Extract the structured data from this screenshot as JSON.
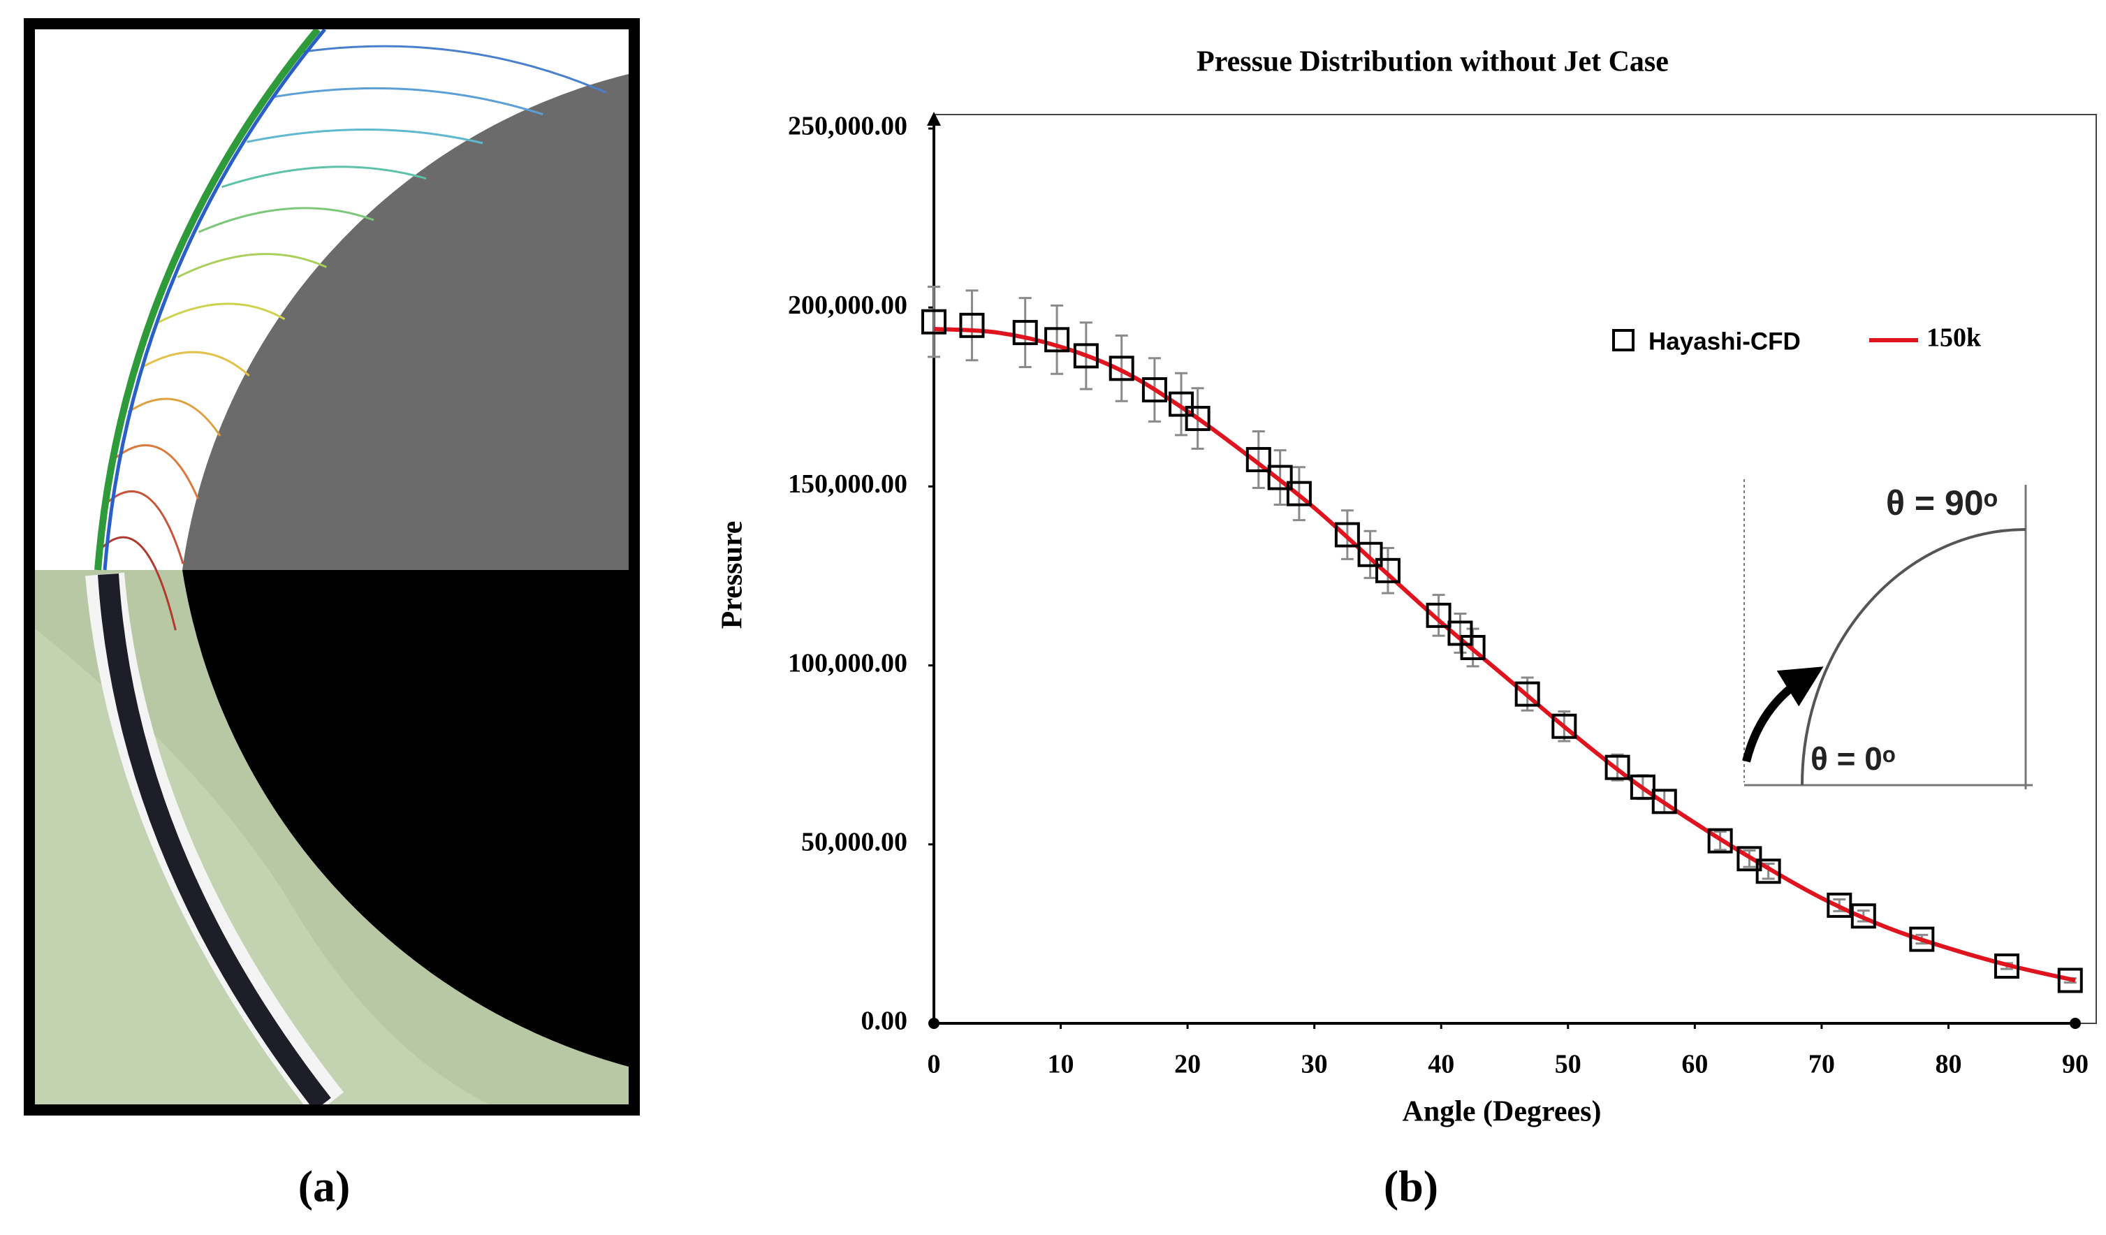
{
  "chart_data": {
    "type": "scatter",
    "title": "Pressue Distribution without Jet Case",
    "xlabel": "Angle (Degrees)",
    "ylabel": "Pressure",
    "xlim": [
      0,
      90
    ],
    "ylim": [
      0,
      250000
    ],
    "xticks": [
      0,
      10,
      20,
      30,
      40,
      50,
      60,
      70,
      80,
      90
    ],
    "yticks": [
      {
        "value": 0,
        "label": "0.00"
      },
      {
        "value": 50000,
        "label": "50,000.00"
      },
      {
        "value": 100000,
        "label": "100,000.00"
      },
      {
        "value": 150000,
        "label": "150,000.00"
      },
      {
        "value": 200000,
        "label": "200,000.00"
      },
      {
        "value": 250000,
        "label": "250,000.00"
      }
    ],
    "legend": "upper right",
    "series": [
      {
        "name": "Hayashi-CFD",
        "color": "#000000",
        "errorbar_color": "#8a8a8a",
        "x": [
          0,
          3,
          7.2,
          9.7,
          12,
          14.8,
          17.4,
          19.5,
          20.8,
          25.6,
          27.3,
          28.8,
          32.6,
          34.4,
          35.8,
          39.8,
          41.5,
          42.5,
          46.8,
          49.7,
          53.9,
          55.9,
          57.6,
          62,
          64.3,
          65.8,
          71.4,
          73.3,
          77.9,
          84.6,
          89.6
        ],
        "values": [
          196000,
          195000,
          193000,
          191000,
          186500,
          183000,
          177000,
          173000,
          169000,
          157500,
          152500,
          148000,
          136500,
          131000,
          126500,
          114000,
          109000,
          105000,
          92000,
          83000,
          71500,
          66000,
          62000,
          51000,
          46000,
          42500,
          33000,
          30000,
          23500,
          16000,
          12000
        ],
        "errors": [
          9800,
          9750,
          9650,
          9550,
          9300,
          9150,
          8850,
          8650,
          8450,
          7900,
          7600,
          7400,
          6800,
          6550,
          6300,
          5700,
          5450,
          5250,
          4600,
          4150,
          3600,
          3300,
          3100,
          2550,
          2300,
          2100,
          1650,
          1500,
          1200,
          800,
          600
        ]
      },
      {
        "name": "150k",
        "color": "#e0141e",
        "type": "line",
        "x": [
          0,
          5,
          10,
          15,
          20,
          25,
          30,
          35,
          40,
          45,
          50,
          55,
          60,
          65,
          70,
          75,
          80,
          85,
          90
        ],
        "values": [
          194000,
          193000,
          189000,
          182000,
          171000,
          158000,
          144000,
          128000,
          112000,
          97000,
          82000,
          68000,
          56000,
          45000,
          35000,
          27000,
          21000,
          16000,
          12000
        ]
      }
    ],
    "annotations": [
      "θ = 90ᵒ",
      "θ = 0ᵒ"
    ]
  },
  "panel_labels": [
    "(a)",
    "(b)"
  ]
}
